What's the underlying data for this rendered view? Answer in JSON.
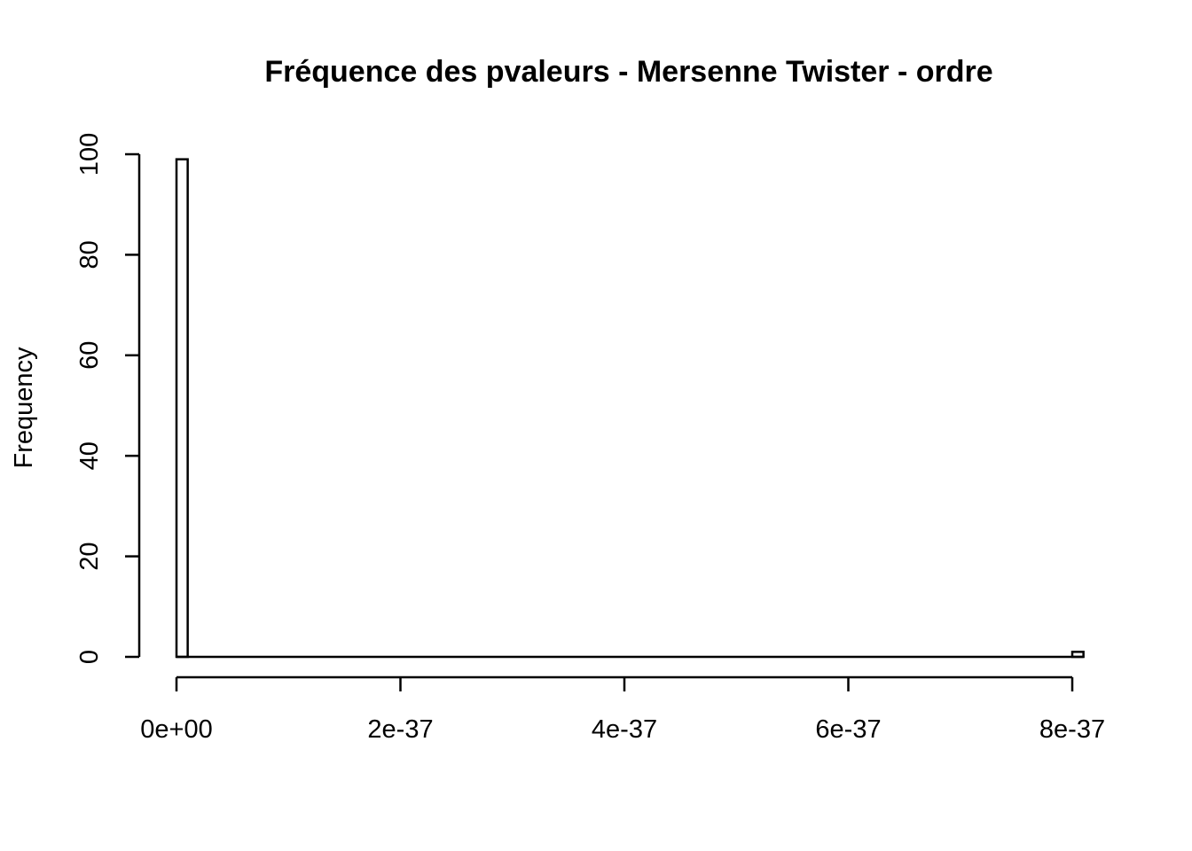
{
  "chart_data": {
    "type": "bar",
    "title": "Fréquence des pvaleurs - Mersenne Twister - ordre",
    "xlabel": "",
    "ylabel": "Frequency",
    "x_ticks": [
      "0e+00",
      "2e-37",
      "4e-37",
      "6e-37",
      "8e-37"
    ],
    "x_tick_values": [
      0,
      2e-37,
      4e-37,
      6e-37,
      8e-37
    ],
    "y_ticks": [
      "0",
      "20",
      "40",
      "60",
      "80",
      "100"
    ],
    "y_tick_values": [
      0,
      20,
      40,
      60,
      80,
      100
    ],
    "xlim": [
      0,
      8.1e-37
    ],
    "ylim": [
      0,
      100
    ],
    "bin_width": 1e-38,
    "bins": [
      {
        "start": 0,
        "end": 1e-38,
        "count": 99
      },
      {
        "start": 8e-37,
        "end": 8.1e-37,
        "count": 1
      }
    ],
    "grid": false,
    "legend": "none"
  }
}
